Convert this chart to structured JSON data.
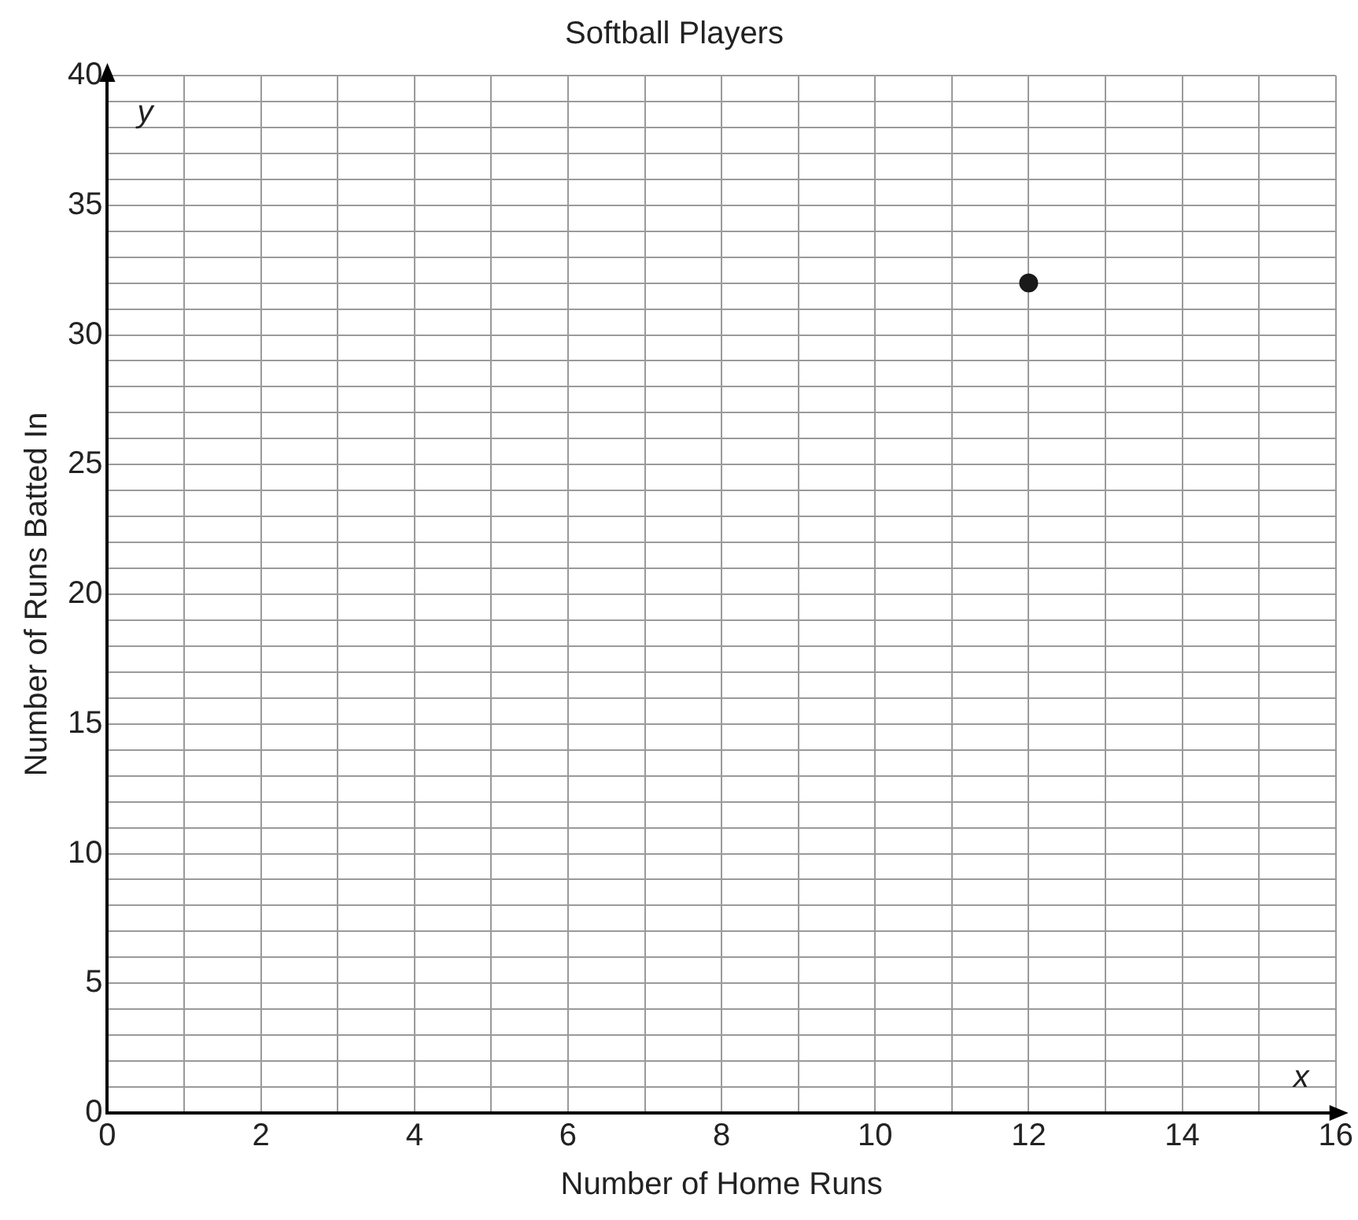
{
  "chart_data": {
    "type": "scatter",
    "title": "Softball Players",
    "xlabel": "Number of Home Runs",
    "ylabel": "Number of Runs Batted In",
    "series": [
      {
        "color": "#1a1a1a",
        "x": [
          12
        ],
        "values": [
          32
        ]
      }
    ],
    "xlim": [
      0,
      16
    ],
    "ylim": [
      0,
      40
    ],
    "xticks": [
      0,
      {
        "value": 1,
        "label": null
      },
      2,
      {
        "value": 3,
        "label": null
      },
      4,
      {
        "value": 5,
        "label": null
      },
      6,
      {
        "value": 7,
        "label": null
      },
      8,
      {
        "value": 9,
        "label": null
      },
      10,
      {
        "value": 11,
        "label": null
      },
      12,
      {
        "value": 13,
        "label": null
      },
      14,
      {
        "value": 15,
        "label": null
      },
      16
    ],
    "yticks": [
      0,
      {
        "value": 1,
        "label": null
      },
      {
        "value": 2,
        "label": null
      },
      {
        "value": 3,
        "label": null
      },
      {
        "value": 4,
        "label": null
      },
      5,
      {
        "value": 6,
        "label": null
      },
      {
        "value": 7,
        "label": null
      },
      {
        "value": 8,
        "label": null
      },
      {
        "value": 9,
        "label": null
      },
      10,
      {
        "value": 11,
        "label": null
      },
      {
        "value": 12,
        "label": null
      },
      {
        "value": 13,
        "label": null
      },
      {
        "value": 14,
        "label": null
      },
      15,
      {
        "value": 16,
        "label": null
      },
      {
        "value": 17,
        "label": null
      },
      {
        "value": 18,
        "label": null
      },
      {
        "value": 19,
        "label": null
      },
      20,
      {
        "value": 21,
        "label": null
      },
      {
        "value": 22,
        "label": null
      },
      {
        "value": 23,
        "label": null
      },
      {
        "value": 24,
        "label": null
      },
      25,
      {
        "value": 26,
        "label": null
      },
      {
        "value": 27,
        "label": null
      },
      {
        "value": 28,
        "label": null
      },
      {
        "value": 29,
        "label": null
      },
      30,
      {
        "value": 31,
        "label": null
      },
      {
        "value": 32,
        "label": null
      },
      {
        "value": 33,
        "label": null
      },
      {
        "value": 34,
        "label": null
      },
      35,
      {
        "value": 36,
        "label": null
      },
      {
        "value": 37,
        "label": null
      },
      {
        "value": 38,
        "label": null
      },
      {
        "value": 39,
        "label": null
      },
      40
    ],
    "annotations": [
      "y",
      "x"
    ],
    "grid": true,
    "legend": false,
    "marker": "circle"
  }
}
